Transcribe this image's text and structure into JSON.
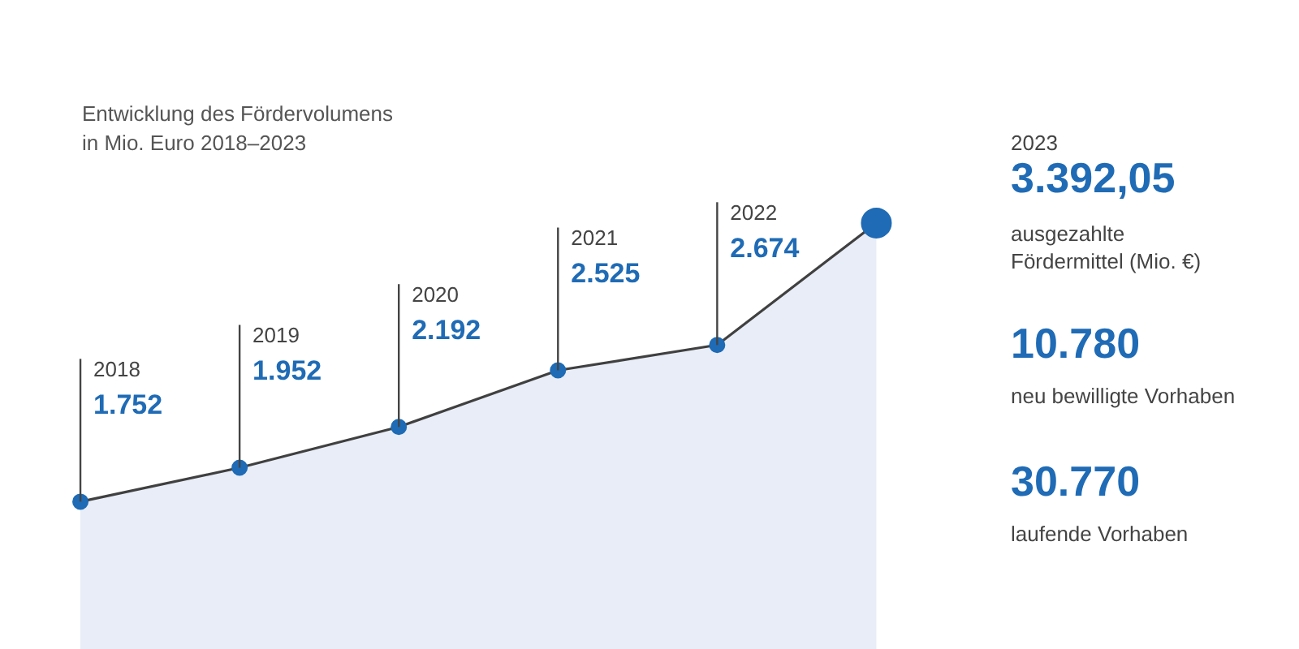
{
  "chart_data": {
    "type": "area",
    "title": "Entwicklung des Fördervolumens\nin Mio. Euro 2018–2023",
    "categories": [
      "2018",
      "2019",
      "2020",
      "2021",
      "2022",
      null
    ],
    "series": [
      {
        "color": "#404040",
        "values": [
          1752,
          1952,
          2192,
          2525,
          2674,
          3392.05
        ],
        "value_labels": [
          "1.752",
          "1.952",
          "2.192",
          "2.525",
          "2.674",
          null
        ]
      }
    ],
    "ylim": [
      880,
      4700
    ],
    "marker": "circle",
    "annotations": [
      "2023",
      "3.392,05",
      "ausgezahlte\nFördermittel (Mio. €)",
      "10.780",
      "neu bewilligte Vorhaben",
      "30.770",
      "laufende Vorhaben"
    ]
  }
}
